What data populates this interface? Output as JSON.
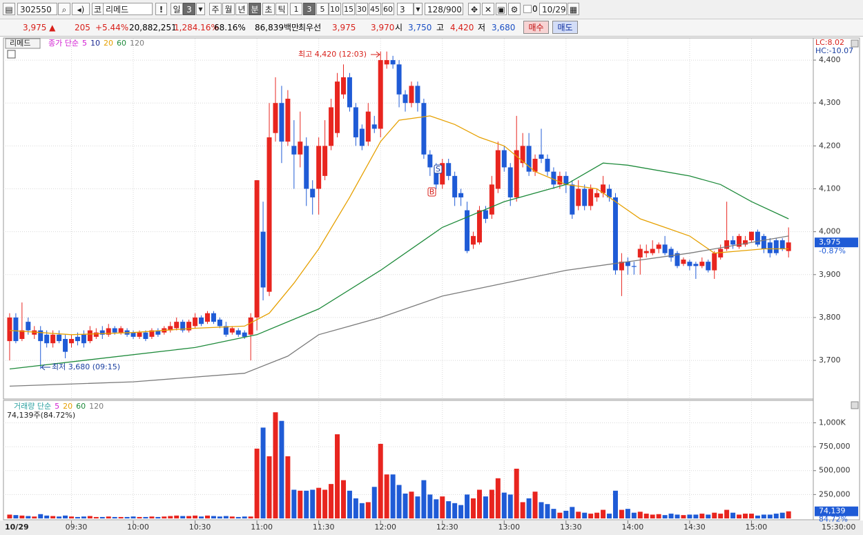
{
  "toolbar": {
    "code": "302550",
    "name_prefix": "코",
    "name": "리메드",
    "alert": "!",
    "periods": [
      "일",
      "3",
      "주",
      "월",
      "년",
      "분",
      "초",
      "틱"
    ],
    "intervals": [
      "1",
      "3",
      "5",
      "10",
      "15",
      "30",
      "45",
      "60"
    ],
    "count": "3",
    "range": "128/900",
    "checkbox": "0",
    "date": "10/29"
  },
  "quote_bar": {
    "price": "3,975 ▲",
    "change": "205",
    "change_pct": "+5.44%",
    "volume": "20,882,251",
    "volume_ratio": "1,284.16%",
    "turnover": "68.16%",
    "amount": "86,839백만",
    "best_label": "최우선",
    "ask": "3,975",
    "bid": "3,970",
    "open_label": "시",
    "open": "3,750",
    "high_label": "고",
    "high": "4,420",
    "low_label": "저",
    "low": "3,680",
    "buy": "매수",
    "sell": "매도"
  },
  "chart_data": [
    {
      "type": "candlestick",
      "title": "리메드",
      "legend_label": "종가 단순",
      "up_color": "#e8251f",
      "down_color": "#1f5bd6",
      "lc_label": "LC:8.02",
      "hc_label": "HC:-10.07",
      "annotations": [
        "최고 4,420 (12:03)",
        "최저 3,680 (09:15)"
      ],
      "signals": [
        "S",
        "B"
      ],
      "current": {
        "value": 3975,
        "label": "3,975"
      },
      "change_label": "-0.87%",
      "xlim": [
        -1,
        130
      ],
      "xticks": [
        {
          "value": 10,
          "label": "09:30"
        },
        {
          "value": 20,
          "label": "10:00"
        },
        {
          "value": 30,
          "label": "10:30"
        },
        {
          "value": 40,
          "label": "11:00"
        },
        {
          "value": 50,
          "label": "11:30"
        },
        {
          "value": 60,
          "label": "12:00"
        },
        {
          "value": 70,
          "label": "12:30"
        },
        {
          "value": 80,
          "label": "13:00"
        },
        {
          "value": 90,
          "label": "13:30"
        },
        {
          "value": 100,
          "label": "14:00"
        },
        {
          "value": 110,
          "label": "14:30"
        },
        {
          "value": 120,
          "label": "15:00"
        }
      ],
      "x_start_label": "10/29",
      "x_end_label": "15:30:00",
      "ylim": [
        3610,
        4450
      ],
      "yticks": [
        {
          "value": 3700,
          "label": "3,700"
        },
        {
          "value": 3800,
          "label": "3,800"
        },
        {
          "value": 3900,
          "label": "3,900"
        },
        {
          "value": 4000,
          "label": "4,000"
        },
        {
          "value": 4100,
          "label": "4,100"
        },
        {
          "value": 4200,
          "label": "4,200"
        },
        {
          "value": 4300,
          "label": "4,300"
        },
        {
          "value": 4400,
          "label": "4,400"
        }
      ],
      "grid": true,
      "moving_averages": [
        {
          "name": "5",
          "color": "#d21cd2"
        },
        {
          "name": "10",
          "color": "#1a2790"
        },
        {
          "name": "20",
          "color": "#e6a000",
          "x": [
            0,
            10,
            20,
            30,
            38,
            42,
            46,
            50,
            55,
            60,
            63,
            68,
            72,
            76,
            80,
            85,
            90,
            95,
            98,
            102,
            106,
            110,
            114,
            118,
            122,
            126
          ],
          "values": [
            3770,
            3760,
            3765,
            3775,
            3780,
            3810,
            3880,
            3960,
            4080,
            4210,
            4260,
            4270,
            4250,
            4220,
            4200,
            4140,
            4110,
            4100,
            4070,
            4030,
            4010,
            3990,
            3950,
            3955,
            3960,
            3960
          ]
        },
        {
          "name": "60",
          "color": "#1d8a3a",
          "x": [
            0,
            30,
            40,
            50,
            60,
            70,
            80,
            90,
            96,
            100,
            110,
            115,
            120,
            126
          ],
          "values": [
            3680,
            3730,
            3760,
            3820,
            3910,
            4010,
            4070,
            4110,
            4160,
            4155,
            4130,
            4110,
            4070,
            4030
          ]
        },
        {
          "name": "120",
          "color": "#7a7a7a",
          "x": [
            0,
            20,
            38,
            45,
            50,
            60,
            70,
            80,
            90,
            100,
            110,
            126
          ],
          "values": [
            3640,
            3650,
            3670,
            3710,
            3760,
            3800,
            3850,
            3880,
            3910,
            3930,
            3950,
            3990
          ]
        }
      ],
      "ohlc": [
        [
          3745,
          3810,
          3700,
          3800
        ],
        [
          3800,
          3810,
          3740,
          3745
        ],
        [
          3750,
          3835,
          3745,
          3770
        ],
        [
          3790,
          3800,
          3760,
          3770
        ],
        [
          3760,
          3780,
          3750,
          3770
        ],
        [
          3770,
          3780,
          3680,
          3745
        ],
        [
          3760,
          3770,
          3730,
          3740
        ],
        [
          3740,
          3770,
          3730,
          3760
        ],
        [
          3760,
          3770,
          3740,
          3745
        ],
        [
          3750,
          3760,
          3705,
          3720
        ],
        [
          3740,
          3760,
          3730,
          3750
        ],
        [
          3755,
          3765,
          3735,
          3745
        ],
        [
          3760,
          3770,
          3730,
          3740
        ],
        [
          3745,
          3780,
          3740,
          3770
        ],
        [
          3755,
          3775,
          3750,
          3765
        ],
        [
          3770,
          3780,
          3750,
          3760
        ],
        [
          3760,
          3785,
          3755,
          3775
        ],
        [
          3775,
          3780,
          3760,
          3765
        ],
        [
          3765,
          3780,
          3760,
          3775
        ],
        [
          3770,
          3775,
          3755,
          3760
        ],
        [
          3765,
          3770,
          3750,
          3755
        ],
        [
          3755,
          3770,
          3750,
          3765
        ],
        [
          3765,
          3770,
          3745,
          3750
        ],
        [
          3755,
          3775,
          3750,
          3770
        ],
        [
          3770,
          3775,
          3755,
          3760
        ],
        [
          3765,
          3780,
          3760,
          3775
        ],
        [
          3770,
          3790,
          3765,
          3780
        ],
        [
          3775,
          3800,
          3770,
          3790
        ],
        [
          3790,
          3795,
          3765,
          3770
        ],
        [
          3770,
          3795,
          3765,
          3790
        ],
        [
          3780,
          3810,
          3775,
          3800
        ],
        [
          3800,
          3805,
          3780,
          3785
        ],
        [
          3790,
          3815,
          3785,
          3810
        ],
        [
          3810,
          3815,
          3785,
          3790
        ],
        [
          3795,
          3800,
          3775,
          3780
        ],
        [
          3780,
          3790,
          3755,
          3760
        ],
        [
          3765,
          3780,
          3760,
          3775
        ],
        [
          3770,
          3775,
          3755,
          3760
        ],
        [
          3765,
          3770,
          3750,
          3755
        ],
        [
          3760,
          3810,
          3700,
          3800
        ],
        [
          3800,
          4120,
          3770,
          4120
        ],
        [
          4000,
          4070,
          3840,
          3870
        ],
        [
          3860,
          4300,
          3850,
          4220
        ],
        [
          4230,
          4360,
          4210,
          4300
        ],
        [
          4300,
          4340,
          4160,
          4210
        ],
        [
          4210,
          4330,
          4200,
          4310
        ],
        [
          4200,
          4260,
          4100,
          4180
        ],
        [
          4180,
          4280,
          4150,
          4210
        ],
        [
          4200,
          4220,
          4060,
          4100
        ],
        [
          4100,
          4120,
          4040,
          4080
        ],
        [
          4100,
          4220,
          4040,
          4200
        ],
        [
          4130,
          4260,
          4120,
          4200
        ],
        [
          4200,
          4310,
          4190,
          4290
        ],
        [
          4230,
          4370,
          4220,
          4350
        ],
        [
          4320,
          4390,
          4310,
          4360
        ],
        [
          4360,
          4370,
          4280,
          4290
        ],
        [
          4290,
          4300,
          4200,
          4220
        ],
        [
          4240,
          4250,
          4190,
          4200
        ],
        [
          4210,
          4300,
          4200,
          4280
        ],
        [
          4250,
          4270,
          4230,
          4240
        ],
        [
          4240,
          4420,
          4220,
          4400
        ],
        [
          4390,
          4420,
          4380,
          4400
        ],
        [
          4400,
          4410,
          4380,
          4390
        ],
        [
          4390,
          4400,
          4290,
          4320
        ],
        [
          4320,
          4330,
          4280,
          4300
        ],
        [
          4300,
          4350,
          4290,
          4340
        ],
        [
          4340,
          4350,
          4280,
          4300
        ],
        [
          4300,
          4310,
          4170,
          4180
        ],
        [
          4180,
          4190,
          4130,
          4150
        ],
        [
          4150,
          4160,
          4100,
          4110
        ],
        [
          4110,
          4170,
          4100,
          4160
        ],
        [
          4160,
          4170,
          4120,
          4130
        ],
        [
          4130,
          4140,
          4060,
          4080
        ],
        [
          4090,
          4100,
          4060,
          4080
        ],
        [
          4050,
          4070,
          3950,
          3955
        ],
        [
          3970,
          4000,
          3960,
          3990
        ],
        [
          3975,
          4060,
          3970,
          4050
        ],
        [
          4050,
          4060,
          4020,
          4030
        ],
        [
          4040,
          4130,
          4030,
          4110
        ],
        [
          4100,
          4210,
          4090,
          4190
        ],
        [
          4190,
          4200,
          4140,
          4150
        ],
        [
          4150,
          4160,
          4060,
          4080
        ],
        [
          4080,
          4270,
          4070,
          4190
        ],
        [
          4160,
          4230,
          4150,
          4200
        ],
        [
          4200,
          4230,
          4130,
          4140
        ],
        [
          4140,
          4180,
          4130,
          4170
        ],
        [
          4180,
          4240,
          4160,
          4170
        ],
        [
          4170,
          4180,
          4130,
          4140
        ],
        [
          4140,
          4150,
          4100,
          4110
        ],
        [
          4110,
          4140,
          4100,
          4130
        ],
        [
          4130,
          4140,
          4090,
          4110
        ],
        [
          4110,
          4120,
          4030,
          4040
        ],
        [
          4060,
          4120,
          4050,
          4100
        ],
        [
          4100,
          4110,
          4050,
          4060
        ],
        [
          4060,
          4110,
          4050,
          4100
        ],
        [
          4080,
          4100,
          4070,
          4090
        ],
        [
          4090,
          4130,
          4080,
          4110
        ],
        [
          4100,
          4110,
          4070,
          4080
        ],
        [
          4080,
          4090,
          3900,
          3910
        ],
        [
          3910,
          3950,
          3850,
          3930
        ],
        [
          3930,
          3940,
          3900,
          3920
        ],
        [
          3920,
          3930,
          3900,
          3918
        ],
        [
          3940,
          3970,
          3900,
          3960
        ],
        [
          3950,
          3970,
          3940,
          3955
        ],
        [
          3950,
          3980,
          3945,
          3960
        ],
        [
          3960,
          3975,
          3950,
          3970
        ],
        [
          3970,
          3990,
          3945,
          3950
        ],
        [
          3960,
          3965,
          3930,
          3940
        ],
        [
          3950,
          3955,
          3915,
          3920
        ],
        [
          3925,
          3940,
          3920,
          3935
        ],
        [
          3930,
          3935,
          3910,
          3920
        ],
        [
          3925,
          3930,
          3890,
          3920
        ],
        [
          3920,
          3940,
          3915,
          3930
        ],
        [
          3930,
          3935,
          3905,
          3910
        ],
        [
          3910,
          3955,
          3890,
          3950
        ],
        [
          3940,
          3970,
          3935,
          3960
        ],
        [
          3960,
          4070,
          3955,
          3980
        ],
        [
          3980,
          3990,
          3960,
          3970
        ],
        [
          3965,
          3995,
          3960,
          3990
        ],
        [
          3970,
          3990,
          3965,
          3980
        ],
        [
          3980,
          4000,
          3975,
          4000
        ],
        [
          4000,
          4005,
          3965,
          3970
        ],
        [
          3990,
          3995,
          3950,
          3960
        ],
        [
          3975,
          3985,
          3940,
          3950
        ],
        [
          3980,
          3985,
          3945,
          3950
        ],
        [
          3980,
          3985,
          3955,
          3960
        ],
        [
          3955,
          4010,
          3940,
          3975
        ]
      ]
    },
    {
      "type": "bar",
      "legend_label": "거래량 단순",
      "info": "74,139주(84.72%)",
      "moving_averages": [
        {
          "name": "5",
          "color": "#d21cd2"
        },
        {
          "name": "20",
          "color": "#e6a000"
        },
        {
          "name": "60",
          "color": "#1d8a3a"
        },
        {
          "name": "120",
          "color": "#7a7a7a"
        }
      ],
      "current": {
        "value": 74139,
        "label": "74,139"
      },
      "ratio_label": "84.72%",
      "ylim": [
        0,
        1220000
      ],
      "yticks": [
        {
          "value": 250000,
          "label": "250,000"
        },
        {
          "value": 500000,
          "label": "500,000"
        },
        {
          "value": 750000,
          "label": "750,000"
        },
        {
          "value": 1000000,
          "label": "1,000K"
        }
      ],
      "values": [
        40000,
        35000,
        30000,
        25000,
        20000,
        45000,
        30000,
        25000,
        20000,
        30000,
        20000,
        15000,
        20000,
        25000,
        15000,
        15000,
        20000,
        15000,
        15000,
        15000,
        20000,
        15000,
        15000,
        20000,
        15000,
        20000,
        25000,
        30000,
        25000,
        25000,
        30000,
        20000,
        30000,
        25000,
        20000,
        25000,
        20000,
        15000,
        20000,
        20000,
        730000,
        950000,
        650000,
        1110000,
        1020000,
        650000,
        300000,
        290000,
        290000,
        300000,
        320000,
        300000,
        360000,
        880000,
        400000,
        290000,
        210000,
        160000,
        170000,
        330000,
        780000,
        460000,
        460000,
        350000,
        260000,
        280000,
        230000,
        400000,
        250000,
        200000,
        230000,
        180000,
        160000,
        140000,
        250000,
        210000,
        300000,
        230000,
        300000,
        420000,
        270000,
        250000,
        520000,
        170000,
        210000,
        280000,
        170000,
        150000,
        100000,
        60000,
        80000,
        120000,
        70000,
        60000,
        50000,
        60000,
        90000,
        50000,
        290000,
        90000,
        100000,
        60000,
        70000,
        50000,
        40000,
        45000,
        35000,
        50000,
        40000,
        35000,
        40000,
        40000,
        50000,
        40000,
        60000,
        50000,
        90000,
        60000,
        40000,
        50000,
        50000,
        30000,
        40000,
        40000,
        50000,
        60000,
        74139
      ]
    }
  ]
}
